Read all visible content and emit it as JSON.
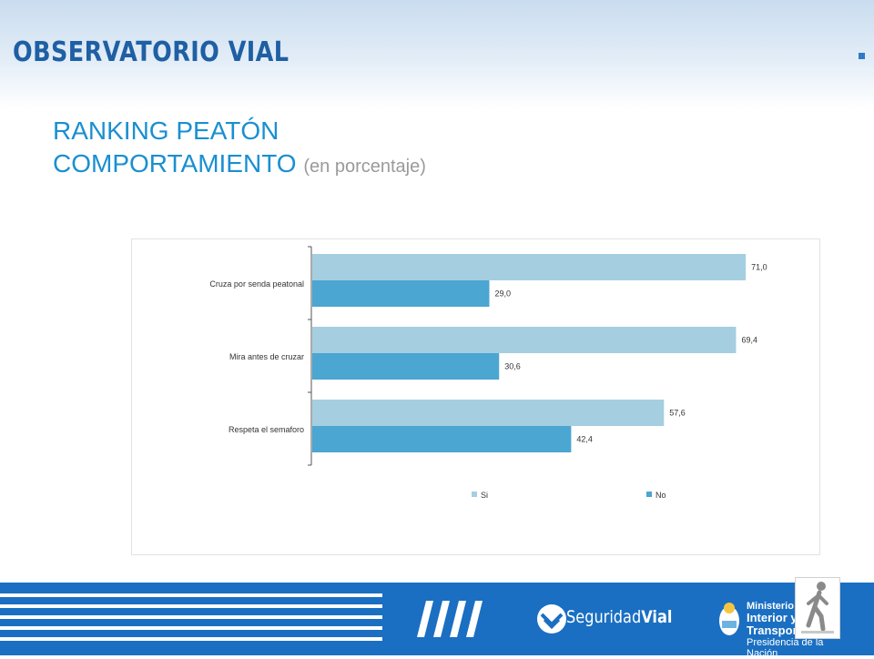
{
  "header": {
    "brand": "OBSERVATORIO VIAL",
    "title_line1": "RANKING PEATÓN",
    "title_line2": "COMPORTAMIENTO",
    "title_suffix": "(en porcentaje)"
  },
  "chart_data": {
    "type": "bar",
    "orientation": "horizontal",
    "categories": [
      "Cruza por senda peatonal",
      "Mira antes de cruzar",
      "Respeta el semaforo"
    ],
    "series": [
      {
        "name": "Si",
        "values": [
          71.0,
          69.4,
          57.6
        ],
        "labels": [
          "71,0",
          "69,4",
          "57,6"
        ],
        "color": "#a5cee0"
      },
      {
        "name": "No",
        "values": [
          29.0,
          30.6,
          42.4
        ],
        "labels": [
          "29,0",
          "30,6",
          "42,4"
        ],
        "color": "#4ba6d1"
      }
    ],
    "xlim": [
      0,
      75
    ],
    "legend_position": "bottom",
    "grid": false
  },
  "footer": {
    "logo_left": "Seguridad",
    "logo_right": "Vial",
    "ministry_line1": "Ministerio de",
    "ministry_line2": "Interior y Transporte",
    "ministry_line3": "Presidencia de la Nación",
    "background_color": "#1a6fc2"
  }
}
